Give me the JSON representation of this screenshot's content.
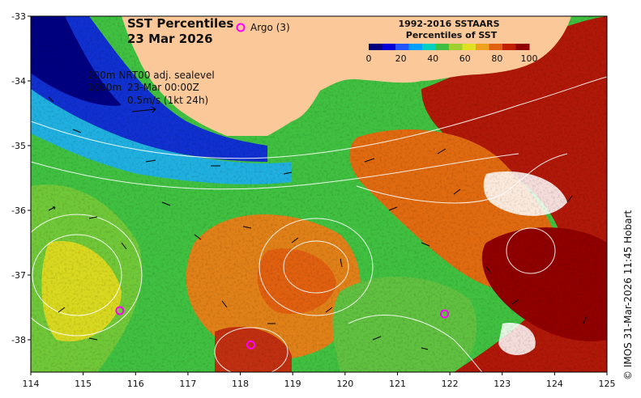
{
  "title": "SST Percentiles",
  "date": "23 Mar 2026",
  "argo_label": "Argo (3)",
  "legend": {
    "title_line1": "1992-2016 SSTAARS",
    "title_line2": "Percentiles of SST",
    "ticks": [
      "0",
      "20",
      "40",
      "60",
      "80",
      "100"
    ],
    "colors": [
      "#00007f",
      "#0000d9",
      "#2255ff",
      "#00a0ff",
      "#00d0c0",
      "#40c040",
      "#a0d030",
      "#e0e020",
      "#f0a020",
      "#e06010",
      "#c02000",
      "#900000"
    ]
  },
  "annotations": {
    "contours": "200m  NRT00 adj. sealevel",
    "depth": "1000m",
    "time": "23-Mar 00:00Z",
    "scale": "0.5m/s (1kt 24h)"
  },
  "credit": "© IMOS 31-Mar-2026 11:45 Hobart",
  "axes": {
    "x_ticks": [
      "114",
      "115",
      "116",
      "117",
      "118",
      "119",
      "120",
      "121",
      "122",
      "123",
      "124",
      "125"
    ],
    "y_ticks": [
      "-33",
      "-34",
      "-35",
      "-36",
      "-37",
      "-38"
    ],
    "xlim": [
      114,
      125
    ],
    "ylim": [
      -38.5,
      -33
    ]
  },
  "argo_floats": [
    {
      "lon": 115.7,
      "lat": -37.55
    },
    {
      "lon": 118.2,
      "lat": -38.08
    },
    {
      "lon": 121.9,
      "lat": -37.6
    }
  ],
  "colors": {
    "land": "#fac899",
    "argo": "#ff00ff"
  }
}
